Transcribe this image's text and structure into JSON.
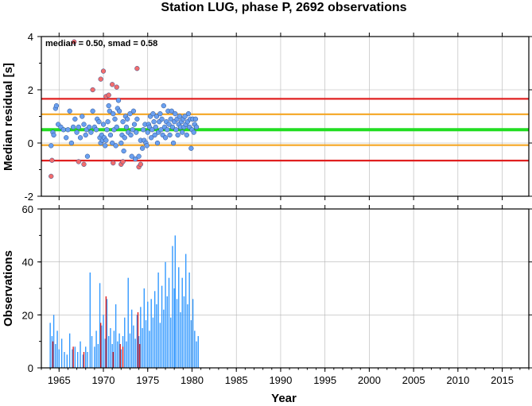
{
  "chart_data": [
    {
      "type": "scatter",
      "title": "Station LUG, phase P, 2692 observations",
      "annotation": "median = 0.50, smad = 0.58",
      "xlabel": "Year",
      "ylabel": "Median residual [s]",
      "xlim": [
        1963.0,
        2018.0
      ],
      "ylim": [
        -2,
        4
      ],
      "yticks": [
        -2,
        0,
        2,
        4
      ],
      "grid": true,
      "reference_lines": [
        {
          "name": "median",
          "value": 0.5,
          "color": "#22dd22"
        },
        {
          "name": "median - 1 smad",
          "value": -0.08,
          "color": "#f5a623"
        },
        {
          "name": "median + 1 smad",
          "value": 1.08,
          "color": "#f5a623"
        },
        {
          "name": "median - 2 smad",
          "value": -0.66,
          "color": "#e02020"
        },
        {
          "name": "median + 2 smad",
          "value": 1.66,
          "color": "#e02020"
        }
      ],
      "series": [
        {
          "name": "",
          "color": "#6aa0f0",
          "points": [
            [
              1964.1,
              -0.1
            ],
            [
              1964.3,
              0.4
            ],
            [
              1964.4,
              0.3
            ],
            [
              1964.6,
              1.3
            ],
            [
              1964.7,
              1.4
            ],
            [
              1964.9,
              0.7
            ],
            [
              1965.2,
              0.6
            ],
            [
              1965.5,
              0.5
            ],
            [
              1965.8,
              0.2
            ],
            [
              1966.0,
              0.5
            ],
            [
              1966.2,
              1.2
            ],
            [
              1966.4,
              0.0
            ],
            [
              1966.6,
              0.6
            ],
            [
              1966.8,
              0.9
            ],
            [
              1967.0,
              0.4
            ],
            [
              1967.2,
              0.6
            ],
            [
              1967.4,
              0.2
            ],
            [
              1967.6,
              1.0
            ],
            [
              1967.8,
              0.7
            ],
            [
              1968.0,
              0.3
            ],
            [
              1968.1,
              0.5
            ],
            [
              1968.2,
              -0.5
            ],
            [
              1968.4,
              0.6
            ],
            [
              1968.6,
              0.4
            ],
            [
              1968.8,
              1.2
            ],
            [
              1969.0,
              0.6
            ],
            [
              1969.2,
              0.5
            ],
            [
              1969.3,
              0.9
            ],
            [
              1969.5,
              0.8
            ],
            [
              1969.6,
              0.2
            ],
            [
              1969.7,
              0.0
            ],
            [
              1969.8,
              0.3
            ],
            [
              1969.9,
              0.1
            ],
            [
              1970.0,
              0.7
            ],
            [
              1970.1,
              0.2
            ],
            [
              1970.2,
              -0.1
            ],
            [
              1970.3,
              0.1
            ],
            [
              1970.4,
              0.5
            ],
            [
              1970.5,
              0.8
            ],
            [
              1970.6,
              1.4
            ],
            [
              1970.7,
              1.2
            ],
            [
              1970.8,
              0.3
            ],
            [
              1971.0,
              0.0
            ],
            [
              1971.1,
              1.1
            ],
            [
              1971.2,
              0.5
            ],
            [
              1971.3,
              0.9
            ],
            [
              1971.4,
              -0.1
            ],
            [
              1971.5,
              0.6
            ],
            [
              1971.6,
              1.3
            ],
            [
              1971.7,
              1.6
            ],
            [
              1971.8,
              1.2
            ],
            [
              1972.0,
              0.0
            ],
            [
              1972.1,
              0.3
            ],
            [
              1972.2,
              0.8
            ],
            [
              1972.3,
              -0.3
            ],
            [
              1972.4,
              0.2
            ],
            [
              1972.5,
              1.0
            ],
            [
              1972.6,
              0.6
            ],
            [
              1972.7,
              0.9
            ],
            [
              1972.8,
              0.4
            ],
            [
              1973.0,
              1.1
            ],
            [
              1973.1,
              0.3
            ],
            [
              1973.2,
              -0.5
            ],
            [
              1973.3,
              0.5
            ],
            [
              1973.4,
              1.2
            ],
            [
              1973.5,
              0.7
            ],
            [
              1973.6,
              -0.6
            ],
            [
              1973.7,
              0.4
            ],
            [
              1973.8,
              0.9
            ],
            [
              1974.0,
              -0.5
            ],
            [
              1974.2,
              0.1
            ],
            [
              1974.4,
              -0.2
            ],
            [
              1974.5,
              0.5
            ],
            [
              1974.6,
              0.1
            ],
            [
              1974.7,
              0.7
            ],
            [
              1974.8,
              0.0
            ],
            [
              1974.9,
              -0.1
            ],
            [
              1975.0,
              0.4
            ],
            [
              1975.1,
              0.7
            ],
            [
              1975.2,
              0.6
            ],
            [
              1975.3,
              1.0
            ],
            [
              1975.4,
              0.2
            ],
            [
              1975.5,
              0.5
            ],
            [
              1975.6,
              1.1
            ],
            [
              1975.7,
              0.8
            ],
            [
              1975.8,
              0.3
            ],
            [
              1975.9,
              0.6
            ],
            [
              1976.0,
              1.0
            ],
            [
              1976.1,
              0.0
            ],
            [
              1976.2,
              0.4
            ],
            [
              1976.3,
              0.8
            ],
            [
              1976.4,
              1.1
            ],
            [
              1976.5,
              0.5
            ],
            [
              1976.6,
              0.9
            ],
            [
              1976.7,
              0.3
            ],
            [
              1976.8,
              1.4
            ],
            [
              1976.9,
              0.6
            ],
            [
              1977.0,
              0.2
            ],
            [
              1977.1,
              0.8
            ],
            [
              1977.2,
              0.5
            ],
            [
              1977.3,
              1.2
            ],
            [
              1977.4,
              0.7
            ],
            [
              1977.5,
              0.3
            ],
            [
              1977.6,
              0.9
            ],
            [
              1977.7,
              1.2
            ],
            [
              1977.8,
              0.6
            ],
            [
              1977.9,
              0.0
            ],
            [
              1978.0,
              0.8
            ],
            [
              1978.1,
              1.1
            ],
            [
              1978.2,
              0.5
            ],
            [
              1978.3,
              0.9
            ],
            [
              1978.4,
              0.3
            ],
            [
              1978.5,
              0.7
            ],
            [
              1978.6,
              1.0
            ],
            [
              1978.7,
              0.6
            ],
            [
              1978.8,
              0.8
            ],
            [
              1978.9,
              0.4
            ],
            [
              1979.0,
              0.9
            ],
            [
              1979.1,
              0.6
            ],
            [
              1979.2,
              1.0
            ],
            [
              1979.3,
              0.7
            ],
            [
              1979.4,
              0.3
            ],
            [
              1979.5,
              0.8
            ],
            [
              1979.6,
              1.1
            ],
            [
              1979.7,
              0.6
            ],
            [
              1979.8,
              0.9
            ],
            [
              1979.9,
              -0.2
            ],
            [
              1980.0,
              0.5
            ],
            [
              1980.1,
              0.9
            ],
            [
              1980.2,
              0.4
            ],
            [
              1980.3,
              0.7
            ],
            [
              1980.4,
              0.9
            ],
            [
              1980.5,
              0.6
            ]
          ]
        },
        {
          "name": "",
          "color": "#f26d6d",
          "points": [
            [
              1964.1,
              -1.25
            ],
            [
              1964.2,
              -0.65
            ],
            [
              1966.7,
              3.8
            ],
            [
              1967.2,
              -0.7
            ],
            [
              1967.8,
              -0.8
            ],
            [
              1968.8,
              2.0
            ],
            [
              1969.7,
              2.4
            ],
            [
              1970.0,
              2.7
            ],
            [
              1970.3,
              1.75
            ],
            [
              1970.6,
              1.8
            ],
            [
              1971.0,
              2.2
            ],
            [
              1971.1,
              -0.75
            ],
            [
              1971.5,
              2.1
            ],
            [
              1972.0,
              -0.8
            ],
            [
              1972.2,
              -0.7
            ],
            [
              1973.8,
              2.8
            ],
            [
              1974.0,
              -0.9
            ],
            [
              1974.2,
              -0.8
            ]
          ]
        }
      ]
    },
    {
      "type": "bar",
      "xlabel": "Year",
      "ylabel": "Observations",
      "xlim": [
        1963.0,
        2018.0
      ],
      "ylim": [
        0,
        60
      ],
      "yticks": [
        0,
        20,
        40,
        60
      ],
      "xticks": [
        1965,
        1970,
        1975,
        1980,
        1985,
        1990,
        1995,
        2000,
        2005,
        2010,
        2015
      ],
      "grid": true,
      "series": [
        {
          "name": "",
          "color": "#3399ff",
          "points": [
            [
              1964.0,
              17
            ],
            [
              1964.2,
              12
            ],
            [
              1964.4,
              20
            ],
            [
              1964.6,
              9
            ],
            [
              1964.8,
              14
            ],
            [
              1965.0,
              7
            ],
            [
              1965.3,
              11
            ],
            [
              1965.6,
              6
            ],
            [
              1965.9,
              5
            ],
            [
              1966.2,
              13
            ],
            [
              1966.5,
              7
            ],
            [
              1966.8,
              8
            ],
            [
              1967.1,
              6
            ],
            [
              1967.4,
              10
            ],
            [
              1967.7,
              5
            ],
            [
              1968.0,
              8
            ],
            [
              1968.2,
              6
            ],
            [
              1968.5,
              36
            ],
            [
              1968.7,
              12
            ],
            [
              1969.0,
              8
            ],
            [
              1969.2,
              14
            ],
            [
              1969.4,
              9
            ],
            [
              1969.6,
              32
            ],
            [
              1969.8,
              16
            ],
            [
              1970.0,
              20
            ],
            [
              1970.2,
              11
            ],
            [
              1970.4,
              26
            ],
            [
              1970.6,
              12
            ],
            [
              1970.8,
              15
            ],
            [
              1971.0,
              9
            ],
            [
              1971.2,
              14
            ],
            [
              1971.4,
              24
            ],
            [
              1971.6,
              10
            ],
            [
              1971.8,
              13
            ],
            [
              1972.0,
              7
            ],
            [
              1972.2,
              12
            ],
            [
              1972.4,
              19
            ],
            [
              1972.6,
              10
            ],
            [
              1972.8,
              34
            ],
            [
              1973.0,
              13
            ],
            [
              1973.2,
              22
            ],
            [
              1973.4,
              16
            ],
            [
              1973.6,
              11
            ],
            [
              1973.8,
              20
            ],
            [
              1974.0,
              12
            ],
            [
              1974.2,
              23
            ],
            [
              1974.4,
              15
            ],
            [
              1974.6,
              30
            ],
            [
              1974.8,
              18
            ],
            [
              1975.0,
              25
            ],
            [
              1975.2,
              14
            ],
            [
              1975.4,
              26
            ],
            [
              1975.6,
              19
            ],
            [
              1975.8,
              29
            ],
            [
              1976.0,
              24
            ],
            [
              1976.2,
              36
            ],
            [
              1976.4,
              17
            ],
            [
              1976.6,
              31
            ],
            [
              1976.8,
              22
            ],
            [
              1977.0,
              40
            ],
            [
              1977.2,
              27
            ],
            [
              1977.4,
              34
            ],
            [
              1977.6,
              19
            ],
            [
              1977.8,
              46
            ],
            [
              1978.0,
              30
            ],
            [
              1978.1,
              50
            ],
            [
              1978.3,
              26
            ],
            [
              1978.5,
              38
            ],
            [
              1978.7,
              21
            ],
            [
              1978.9,
              34
            ],
            [
              1979.1,
              27
            ],
            [
              1979.3,
              43
            ],
            [
              1979.5,
              24
            ],
            [
              1979.7,
              36
            ],
            [
              1979.9,
              18
            ],
            [
              1980.1,
              26
            ],
            [
              1980.3,
              14
            ],
            [
              1980.5,
              10
            ],
            [
              1980.7,
              12
            ]
          ]
        },
        {
          "name": "",
          "color": "#e02020",
          "points": [
            [
              1964.3,
              10
            ],
            [
              1966.6,
              8
            ],
            [
              1967.8,
              6
            ],
            [
              1969.7,
              17
            ],
            [
              1970.3,
              27
            ],
            [
              1971.1,
              6
            ],
            [
              1971.9,
              9
            ],
            [
              1972.2,
              8
            ],
            [
              1973.9,
              21
            ],
            [
              1974.1,
              9
            ]
          ]
        }
      ]
    }
  ]
}
